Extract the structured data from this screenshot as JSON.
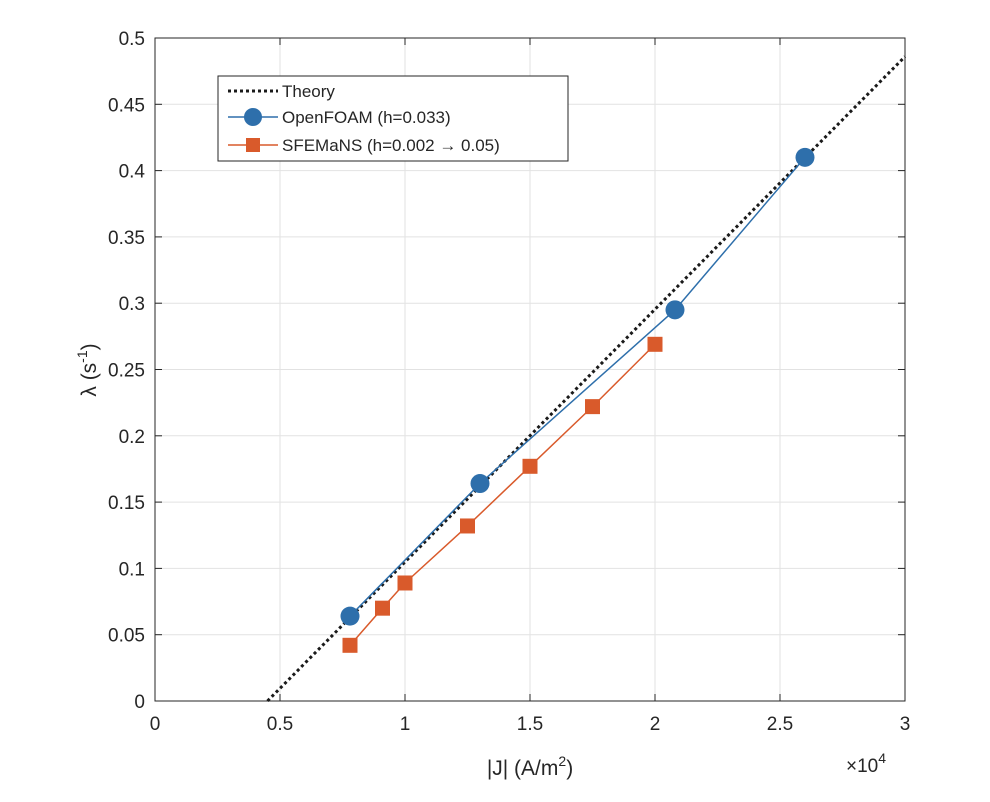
{
  "chart_data": {
    "type": "line",
    "title": "",
    "xlabel": "|J| (A/m",
    "xlabel_sup": "2",
    "xlabel_end": ")",
    "ylabel": "λ (s",
    "ylabel_sup": "-1",
    "ylabel_end": ")",
    "x_multiplier_base": "×10",
    "x_multiplier_exp": "4",
    "xlim": [
      0,
      3
    ],
    "ylim": [
      0,
      0.5
    ],
    "x_ticks": [
      0,
      0.5,
      1,
      1.5,
      2,
      2.5,
      3
    ],
    "x_tick_labels": [
      "0",
      "0.5",
      "1",
      "1.5",
      "2",
      "2.5",
      "3"
    ],
    "y_ticks": [
      0,
      0.05,
      0.1,
      0.15,
      0.2,
      0.25,
      0.3,
      0.35,
      0.4,
      0.45,
      0.5
    ],
    "y_tick_labels": [
      "0",
      "0.05",
      "0.1",
      "0.15",
      "0.2",
      "0.25",
      "0.3",
      "0.35",
      "0.4",
      "0.45",
      "0.5"
    ],
    "grid": true,
    "legend_position": "top-left",
    "series": [
      {
        "name": "Theory",
        "style": "dotted",
        "marker": "none",
        "color": "#1a1a1a",
        "x": [
          0.45,
          3.0
        ],
        "y": [
          0.0,
          0.486
        ]
      },
      {
        "name": "OpenFOAM (h=0.033)",
        "style": "solid",
        "marker": "circle",
        "color": "#2e6fab",
        "x": [
          0.78,
          1.3,
          2.08,
          2.6
        ],
        "y": [
          0.064,
          0.164,
          0.295,
          0.41
        ]
      },
      {
        "name": "SFEMaNS (h=0.002  → 0.05)",
        "style": "solid",
        "marker": "square",
        "color": "#d95a2b",
        "x": [
          0.78,
          0.91,
          1.0,
          1.25,
          1.5,
          1.75,
          2.0
        ],
        "y": [
          0.042,
          0.07,
          0.089,
          0.132,
          0.177,
          0.222,
          0.269
        ]
      }
    ]
  }
}
